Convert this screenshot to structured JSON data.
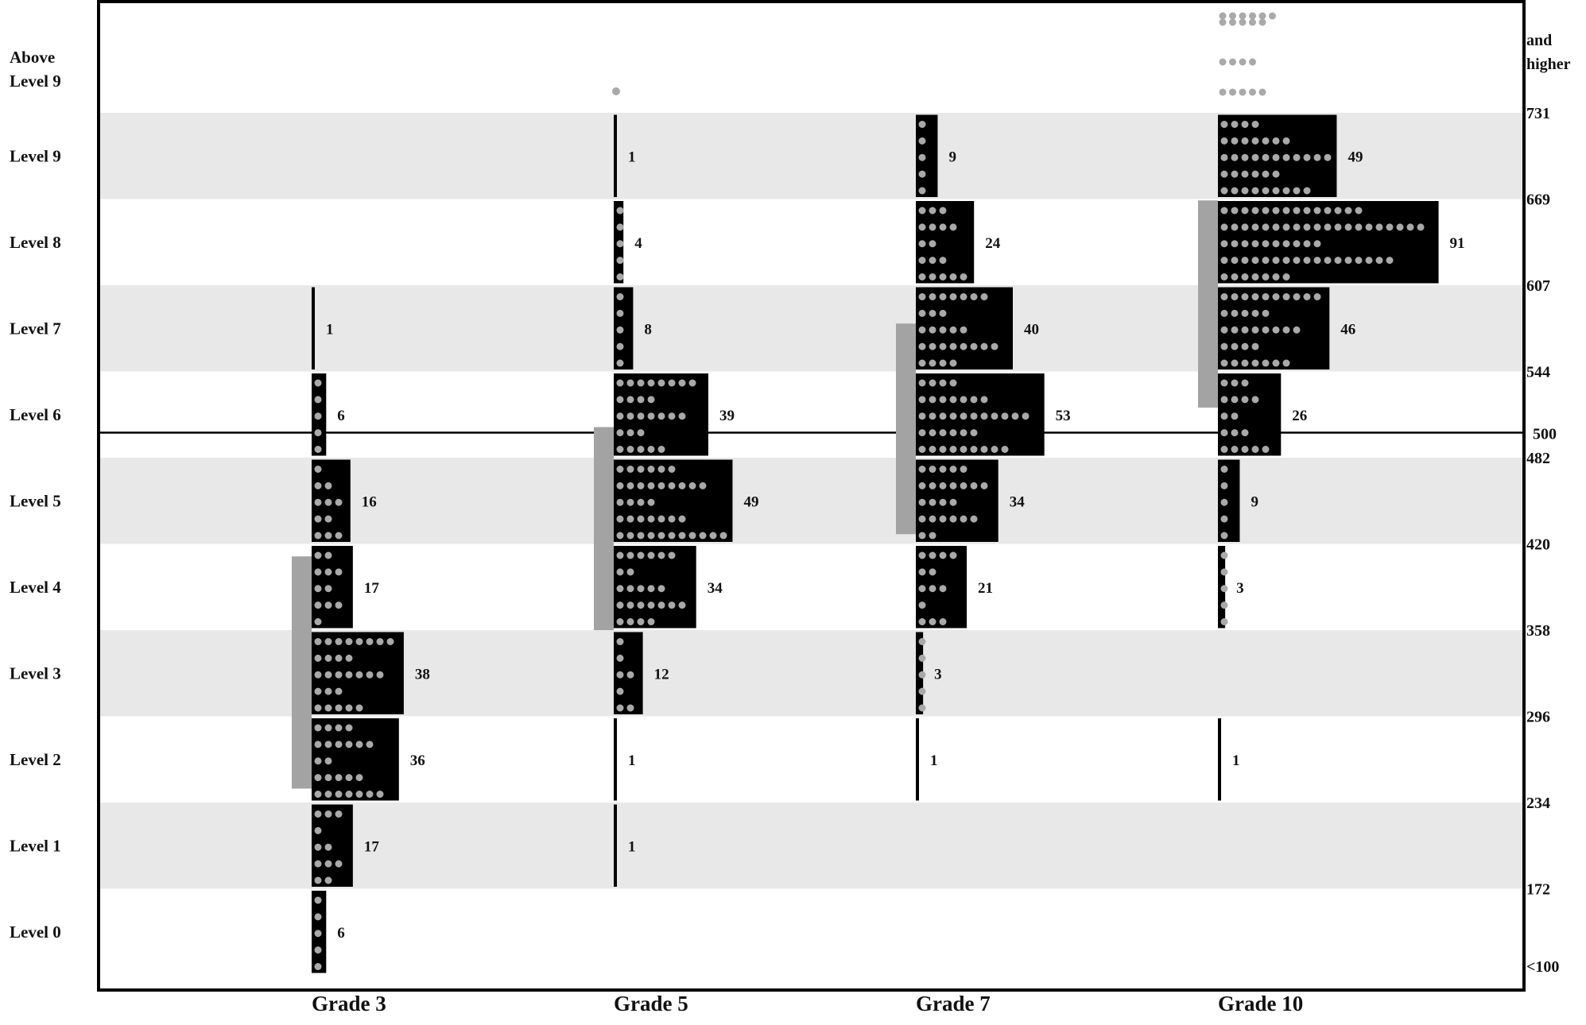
{
  "chart_data": {
    "type": "bar",
    "title": "",
    "xlabel": "",
    "ylabel": "",
    "categories": [
      "Grade 3",
      "Grade 5",
      "Grade 7",
      "Grade 10"
    ],
    "levels": [
      "Level 0",
      "Level 1",
      "Level 2",
      "Level 3",
      "Level 4",
      "Level 5",
      "Level 6",
      "Level 7",
      "Level 8",
      "Level 9",
      "Above Level 9"
    ],
    "level_labels_display": [
      [
        "Level 0"
      ],
      [
        "Level 1"
      ],
      [
        "Level 2"
      ],
      [
        "Level 3"
      ],
      [
        "Level 4"
      ],
      [
        "Level 5"
      ],
      [
        "Level 6"
      ],
      [
        "Level 7"
      ],
      [
        "Level 8"
      ],
      [
        "Level 9"
      ],
      [
        "Above",
        "Level 9"
      ]
    ],
    "scale_ticks": [
      "<100",
      "172",
      "234",
      "296",
      "358",
      "420",
      "482",
      "544",
      "607",
      "669",
      "731"
    ],
    "scale_top_label": [
      "and",
      "higher"
    ],
    "reference_line": {
      "value": 500,
      "label": "500"
    },
    "series": [
      {
        "grade": "Grade 3",
        "counts": [
          6,
          17,
          36,
          38,
          17,
          16,
          6,
          1,
          null,
          null,
          null
        ],
        "gray_range_scale": [
          244,
          411
        ]
      },
      {
        "grade": "Grade 5",
        "counts": [
          null,
          1,
          1,
          12,
          34,
          49,
          39,
          8,
          4,
          1,
          null
        ],
        "gray_range_scale": [
          358,
          504
        ]
      },
      {
        "grade": "Grade 7",
        "counts": [
          null,
          null,
          1,
          3,
          21,
          34,
          53,
          40,
          24,
          9,
          null
        ],
        "gray_range_scale": [
          427,
          579
        ]
      },
      {
        "grade": "Grade 10",
        "counts": [
          null,
          null,
          1,
          null,
          3,
          9,
          26,
          46,
          91,
          49,
          null
        ],
        "gray_range_scale": [
          518,
          668
        ]
      }
    ],
    "grid": false,
    "legend": "none"
  }
}
